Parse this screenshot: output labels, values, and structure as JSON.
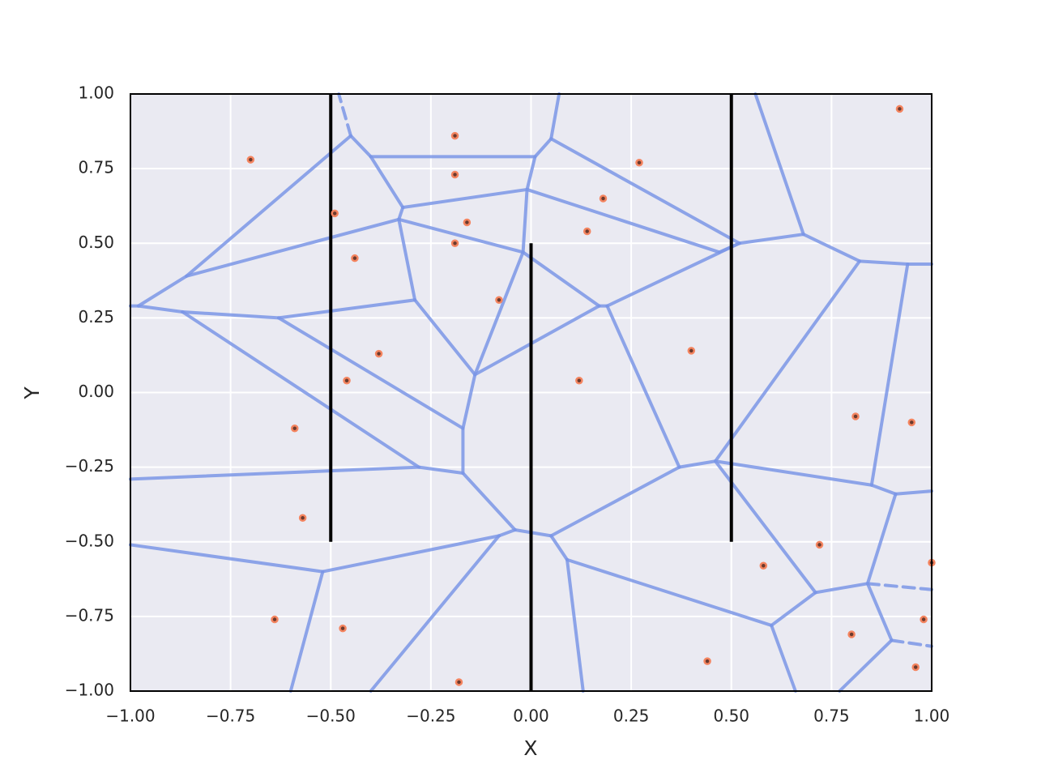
{
  "chart_data": {
    "type": "voronoi",
    "xlabel": "X",
    "ylabel": "Y",
    "xlim": [
      -1,
      1
    ],
    "ylim": [
      -1,
      1
    ],
    "xticks": [
      {
        "value": -1,
        "label": "−1.00"
      },
      {
        "value": -0.75,
        "label": "−0.75"
      },
      {
        "value": -0.5,
        "label": "−0.50"
      },
      {
        "value": -0.25,
        "label": "−0.25"
      },
      {
        "value": 0,
        "label": "0.00"
      },
      {
        "value": 0.25,
        "label": "0.25"
      },
      {
        "value": 0.5,
        "label": "0.50"
      },
      {
        "value": 0.75,
        "label": "0.75"
      },
      {
        "value": 1,
        "label": "1.00"
      }
    ],
    "yticks": [
      {
        "value": -1,
        "label": "−1.00"
      },
      {
        "value": -0.75,
        "label": "−0.75"
      },
      {
        "value": -0.5,
        "label": "−0.50"
      },
      {
        "value": -0.25,
        "label": "−0.25"
      },
      {
        "value": 0,
        "label": "0.00"
      },
      {
        "value": 0.25,
        "label": "0.25"
      },
      {
        "value": 0.5,
        "label": "0.50"
      },
      {
        "value": 0.75,
        "label": "0.75"
      },
      {
        "value": 1,
        "label": "1.00"
      }
    ],
    "grid": true,
    "points": {
      "color": "#f4845f",
      "x": [
        -0.7,
        -0.19,
        -0.19,
        -0.49,
        -0.16,
        -0.19,
        -0.44,
        -0.08,
        -0.38,
        -0.46,
        -0.59,
        -0.57,
        -0.64,
        -0.47,
        -0.18,
        0.27,
        0.18,
        0.14,
        0.12,
        0.4,
        0.92,
        0.81,
        0.95,
        0.72,
        0.58,
        1.0,
        0.98,
        0.8,
        0.96,
        0.44
      ],
      "y": [
        0.78,
        0.86,
        0.73,
        0.6,
        0.57,
        0.5,
        0.45,
        0.31,
        0.13,
        0.04,
        -0.12,
        -0.42,
        -0.76,
        -0.79,
        -0.97,
        0.77,
        0.65,
        0.54,
        0.04,
        0.14,
        0.95,
        -0.08,
        -0.1,
        -0.51,
        -0.58,
        -0.57,
        -0.76,
        -0.81,
        -0.92,
        -0.9
      ]
    },
    "edge_color": "#7b97e6",
    "edges": [
      {
        "x": [
          -0.86,
          -0.45
        ],
        "y": [
          0.39,
          0.86
        ]
      },
      {
        "x": [
          -0.45,
          -0.4
        ],
        "y": [
          0.86,
          0.79
        ]
      },
      {
        "x": [
          -0.4,
          0.01
        ],
        "y": [
          0.79,
          0.79
        ]
      },
      {
        "x": [
          -0.4,
          -0.32
        ],
        "y": [
          0.79,
          0.62
        ]
      },
      {
        "x": [
          -0.32,
          -0.01
        ],
        "y": [
          0.62,
          0.68
        ]
      },
      {
        "x": [
          -0.32,
          -0.33
        ],
        "y": [
          0.62,
          0.58
        ]
      },
      {
        "x": [
          -0.01,
          0.01
        ],
        "y": [
          0.68,
          0.79
        ]
      },
      {
        "x": [
          0.01,
          0.05
        ],
        "y": [
          0.79,
          0.85
        ]
      },
      {
        "x": [
          0.05,
          0.07
        ],
        "y": [
          0.85,
          1.0
        ]
      },
      {
        "x": [
          0.05,
          0.52
        ],
        "y": [
          0.85,
          0.5
        ]
      },
      {
        "x": [
          -0.01,
          -0.02
        ],
        "y": [
          0.68,
          0.47
        ]
      },
      {
        "x": [
          -0.01,
          0.47
        ],
        "y": [
          0.68,
          0.47
        ]
      },
      {
        "x": [
          -0.33,
          -0.02
        ],
        "y": [
          0.58,
          0.47
        ]
      },
      {
        "x": [
          -0.86,
          -0.33
        ],
        "y": [
          0.39,
          0.58
        ]
      },
      {
        "x": [
          -0.33,
          -0.29
        ],
        "y": [
          0.58,
          0.31
        ]
      },
      {
        "x": [
          -0.29,
          -0.63
        ],
        "y": [
          0.31,
          0.25
        ]
      },
      {
        "x": [
          -0.63,
          -0.87
        ],
        "y": [
          0.25,
          0.27
        ]
      },
      {
        "x": [
          -0.87,
          -0.98
        ],
        "y": [
          0.27,
          0.29
        ]
      },
      {
        "x": [
          -0.98,
          -1.0
        ],
        "y": [
          0.29,
          0.29
        ]
      },
      {
        "x": [
          -0.98,
          -0.86
        ],
        "y": [
          0.29,
          0.39
        ]
      },
      {
        "x": [
          -0.87,
          -0.28
        ],
        "y": [
          0.27,
          -0.25
        ]
      },
      {
        "x": [
          -0.63,
          -0.17
        ],
        "y": [
          0.25,
          -0.12
        ]
      },
      {
        "x": [
          -0.29,
          -0.14
        ],
        "y": [
          0.31,
          0.06
        ]
      },
      {
        "x": [
          -0.02,
          -0.14
        ],
        "y": [
          0.47,
          0.06
        ]
      },
      {
        "x": [
          -0.02,
          0.17
        ],
        "y": [
          0.47,
          0.29
        ]
      },
      {
        "x": [
          -0.14,
          0.17
        ],
        "y": [
          0.06,
          0.29
        ]
      },
      {
        "x": [
          0.17,
          0.19
        ],
        "y": [
          0.29,
          0.29
        ]
      },
      {
        "x": [
          0.19,
          0.52
        ],
        "y": [
          0.29,
          0.5
        ]
      },
      {
        "x": [
          0.47,
          0.52
        ],
        "y": [
          0.47,
          0.5
        ]
      },
      {
        "x": [
          0.52,
          0.68
        ],
        "y": [
          0.5,
          0.53
        ]
      },
      {
        "x": [
          0.68,
          0.56
        ],
        "y": [
          0.53,
          1.0
        ]
      },
      {
        "x": [
          0.68,
          0.82
        ],
        "y": [
          0.53,
          0.44
        ]
      },
      {
        "x": [
          0.82,
          0.94
        ],
        "y": [
          0.44,
          0.43
        ]
      },
      {
        "x": [
          0.94,
          1.0
        ],
        "y": [
          0.43,
          0.43
        ]
      },
      {
        "x": [
          0.94,
          0.85
        ],
        "y": [
          0.43,
          -0.31
        ]
      },
      {
        "x": [
          0.82,
          0.46
        ],
        "y": [
          0.44,
          -0.23
        ]
      },
      {
        "x": [
          0.19,
          0.37
        ],
        "y": [
          0.29,
          -0.25
        ]
      },
      {
        "x": [
          0.37,
          0.46
        ],
        "y": [
          -0.25,
          -0.23
        ]
      },
      {
        "x": [
          0.46,
          0.85
        ],
        "y": [
          -0.23,
          -0.31
        ]
      },
      {
        "x": [
          0.85,
          0.91
        ],
        "y": [
          -0.31,
          -0.34
        ]
      },
      {
        "x": [
          0.91,
          1.0
        ],
        "y": [
          -0.34,
          -0.33
        ]
      },
      {
        "x": [
          0.91,
          0.84
        ],
        "y": [
          -0.34,
          -0.64
        ]
      },
      {
        "x": [
          0.84,
          0.9
        ],
        "y": [
          -0.64,
          -0.83
        ]
      },
      {
        "x": [
          0.9,
          0.77
        ],
        "y": [
          -0.83,
          -1.0
        ]
      },
      {
        "x": [
          0.84,
          0.71
        ],
        "y": [
          -0.64,
          -0.67
        ]
      },
      {
        "x": [
          0.71,
          0.46
        ],
        "y": [
          -0.67,
          -0.23
        ]
      },
      {
        "x": [
          0.71,
          0.6
        ],
        "y": [
          -0.67,
          -0.78
        ]
      },
      {
        "x": [
          0.6,
          0.66
        ],
        "y": [
          -0.78,
          -1.0
        ]
      },
      {
        "x": [
          0.6,
          0.09
        ],
        "y": [
          -0.78,
          -0.56
        ]
      },
      {
        "x": [
          0.09,
          0.13
        ],
        "y": [
          -0.56,
          -1.0
        ]
      },
      {
        "x": [
          0.09,
          0.05
        ],
        "y": [
          -0.56,
          -0.48
        ]
      },
      {
        "x": [
          0.05,
          0.37
        ],
        "y": [
          -0.48,
          -0.25
        ]
      },
      {
        "x": [
          0.05,
          -0.04
        ],
        "y": [
          -0.48,
          -0.46
        ]
      },
      {
        "x": [
          -0.04,
          -0.17
        ],
        "y": [
          -0.46,
          -0.27
        ]
      },
      {
        "x": [
          -0.17,
          -0.17
        ],
        "y": [
          -0.27,
          -0.12
        ]
      },
      {
        "x": [
          -0.17,
          -0.14
        ],
        "y": [
          -0.12,
          0.06
        ]
      },
      {
        "x": [
          -0.17,
          -0.28
        ],
        "y": [
          -0.27,
          -0.25
        ]
      },
      {
        "x": [
          -0.28,
          -1.0
        ],
        "y": [
          -0.25,
          -0.29
        ]
      },
      {
        "x": [
          -1.0,
          -0.52
        ],
        "y": [
          -0.51,
          -0.6
        ]
      },
      {
        "x": [
          -0.52,
          -0.08
        ],
        "y": [
          -0.6,
          -0.48
        ]
      },
      {
        "x": [
          -0.08,
          -0.04
        ],
        "y": [
          -0.48,
          -0.46
        ]
      },
      {
        "x": [
          -0.52,
          -0.6
        ],
        "y": [
          -0.6,
          -1.0
        ]
      },
      {
        "x": [
          -0.08,
          -0.4
        ],
        "y": [
          -0.48,
          -1.0
        ]
      }
    ],
    "dashed_edges": [
      {
        "x": [
          -0.45,
          -0.48
        ],
        "y": [
          0.86,
          1.0
        ]
      },
      {
        "x": [
          0.84,
          1.0
        ],
        "y": [
          -0.64,
          -0.66
        ]
      },
      {
        "x": [
          0.9,
          1.0
        ],
        "y": [
          -0.83,
          -0.85
        ]
      }
    ],
    "vline_color": "#000000",
    "vlines": [
      {
        "x": -0.5,
        "ymin": -0.5,
        "ymax": 1
      },
      {
        "x": 0,
        "ymin": -1,
        "ymax": 0.5
      },
      {
        "x": 0.5,
        "ymin": -0.5,
        "ymax": 1
      }
    ]
  }
}
